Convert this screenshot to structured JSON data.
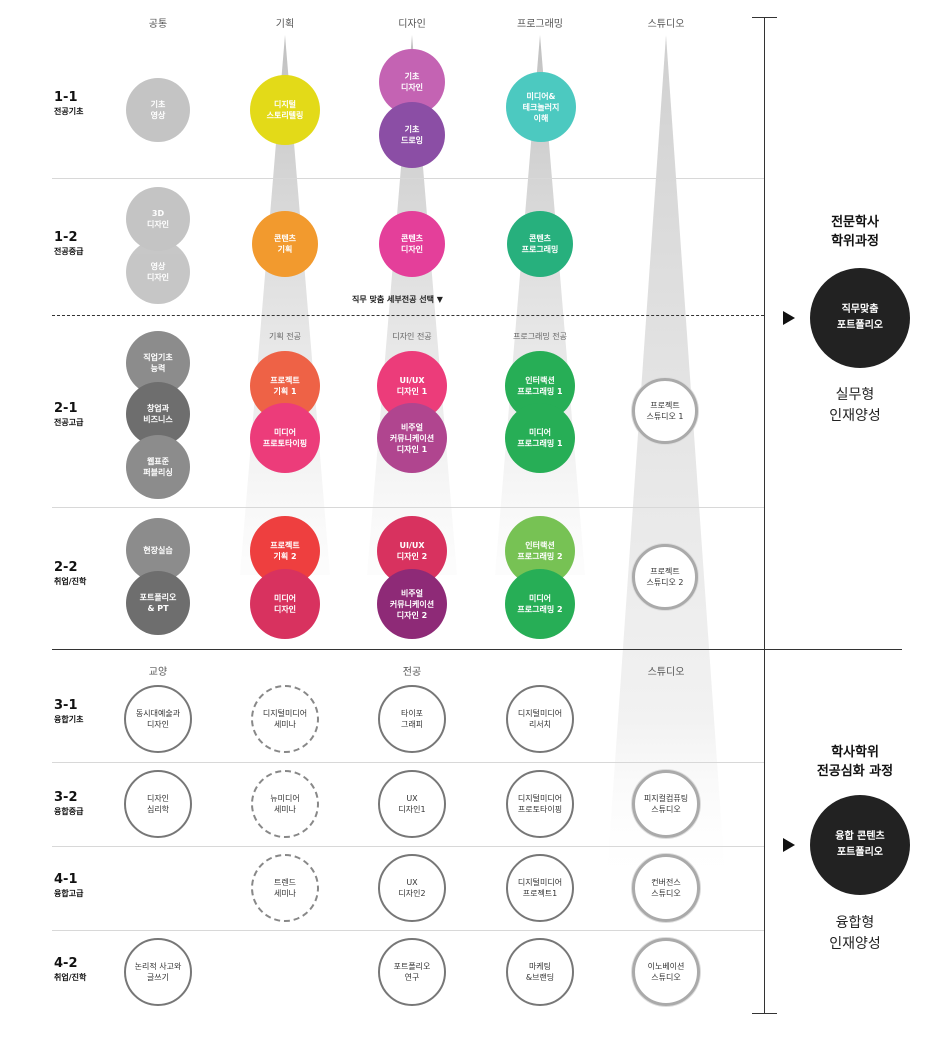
{
  "top_headers": {
    "common": "공통",
    "planning": "기획",
    "design": "디자인",
    "programming": "프로그래밍",
    "studio": "스튜디오"
  },
  "bottom_headers": {
    "liberal": "교양",
    "major": "전공",
    "studio": "스튜디오"
  },
  "sub_headers": {
    "planning": "기획 전공",
    "design": "디자인 전공",
    "programming": "프로그래밍 전공"
  },
  "rows": {
    "r11": {
      "code": "1-1",
      "name": "전공기초"
    },
    "r12": {
      "code": "1-2",
      "name": "전공중급"
    },
    "r21": {
      "code": "2-1",
      "name": "전공고급"
    },
    "r22": {
      "code": "2-2",
      "name": "취업/진학"
    },
    "r31": {
      "code": "3-1",
      "name": "융합기초"
    },
    "r32": {
      "code": "3-2",
      "name": "융합중급"
    },
    "r41": {
      "code": "4-1",
      "name": "융합고급"
    },
    "r42": {
      "code": "4-2",
      "name": "취업/진학"
    }
  },
  "note_select": "직무 맞춤 세부전공 선택 ▼",
  "courses": {
    "basic_video": "기초\n영상",
    "digital_story": "디지털\n스토리텔링",
    "basic_design": "기초\n디자인",
    "basic_drawing": "기초\n드로잉",
    "media_tech": "미디어&\n테크놀러지\n이해",
    "d3_design": "3D\n디자인",
    "video_design": "영상\n디자인",
    "content_plan": "콘텐츠\n기획",
    "content_design": "콘텐츠\n디자인",
    "content_prog": "콘텐츠\n프로그래밍",
    "job_basic": "직업기초\n능력",
    "startup_biz": "창업과\n비즈니스",
    "web_publish": "웹표준\n퍼블리싱",
    "project_plan1": "프로젝트\n기획 1",
    "media_proto1": "미디어\n프로토타이핑",
    "uiux_design1": "UI/UX\n디자인 1",
    "visual_comm1": "비주얼\n커뮤니케이션\n디자인 1",
    "inter_prog1": "인터랙션\n프로그래밍 1",
    "media_prog1": "미디어\n프로그래밍 1",
    "studio1": "프로젝트\n스튜디오 1",
    "field_practice": "현장실습",
    "portfolio_pt": "포트폴리오\n& PT",
    "project_plan2": "프로젝트\n기획 2",
    "media_design": "미디어\n디자인",
    "uiux_design2": "UI/UX\n디자인 2",
    "visual_comm2": "비주얼\n커뮤니케이션\n디자인 2",
    "inter_prog2": "인터랙션\n프로그래밍 2",
    "media_prog2": "미디어\n프로그래밍 2",
    "studio2": "프로젝트\n스튜디오 2",
    "contemp_art": "동시대예술과\n디자인",
    "dm_seminar": "디지털미디어\n세미나",
    "typography": "타이포\n그래피",
    "dm_research": "디지털미디어\n리서치",
    "design_psych": "디자인\n심리학",
    "newmedia_seminar": "뉴미디어\n세미나",
    "ux_design1": "UX\n디자인1",
    "dm_proto": "디지털미디어\n프로토타이핑",
    "physical_studio": "피지컬컴퓨팅\n스튜디오",
    "trend_seminar": "트렌드\n세미나",
    "ux_design2": "UX\n디자인2",
    "dm_project1": "디지털미디어\n프로젝트1",
    "convergence_studio": "컨버전스\n스튜디오",
    "logic_writing": "논리적 사고와\n글쓰기",
    "portfolio_study": "포트폴리오\n연구",
    "marketing_brand": "마케팅\n&브랜딩",
    "innovation_studio": "이노베이션\n스튜디오"
  },
  "right_panel": {
    "upper_title": "전문학사\n학위과정",
    "upper_circle": "직무맞춤\n포트폴리오",
    "upper_outcome": "실무형\n인재양성",
    "lower_title": "학사학위\n전공심화 과정",
    "lower_circle": "융합 콘텐츠\n포트폴리오",
    "lower_outcome": "융합형\n인재양성"
  },
  "colors": {
    "grey_light": "#c4c4c4",
    "grey_mid": "#8c8c8c",
    "grey_dark": "#6e6e6e",
    "yellow": "#e3da18",
    "orange": "#f29a2e",
    "red_orange": "#ee6246",
    "pink": "#ec3c7a",
    "crimson": "#d8325f",
    "magenta": "#e43f9a",
    "orchid": "#c463b3",
    "purple": "#8b4ea5",
    "plum": "#b0458f",
    "deep_purple": "#8e2a77",
    "teal": "#4cc9c0",
    "green_teal": "#27b07d",
    "green": "#27ae56",
    "lime": "#77c254",
    "dark": "#222222"
  }
}
